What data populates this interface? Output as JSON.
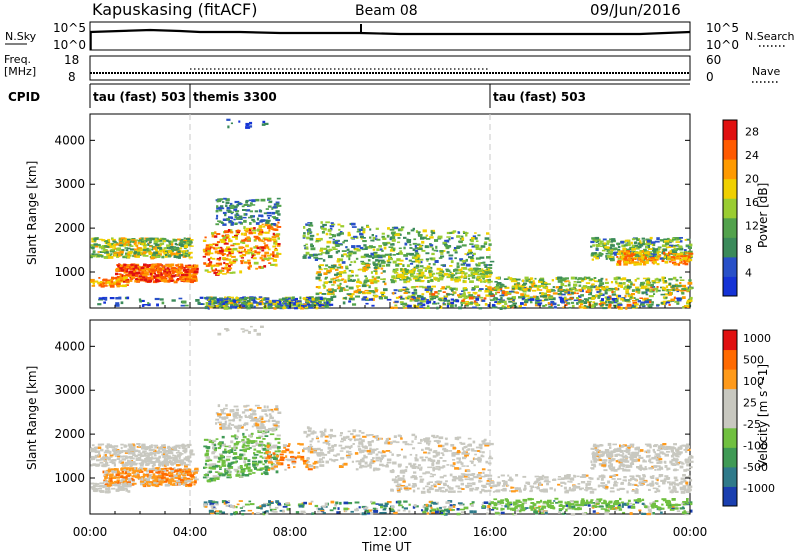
{
  "header": {
    "title": "Kapuskasing (fitACF)",
    "beam": "Beam 08",
    "date": "09/Jun/2016"
  },
  "noise_panel": {
    "left_label": "N.Sky",
    "left_ticks": [
      "10^5",
      "10^0"
    ],
    "right_ticks": [
      "10^5",
      "10^0"
    ],
    "right_label": "N.Search"
  },
  "freq_panel": {
    "left_label_1": "Freq.",
    "left_label_2": "[MHz]",
    "left_ticks": [
      "18",
      "8"
    ],
    "right_ticks": [
      "60",
      "0"
    ],
    "right_label": "Nave"
  },
  "cpid_panel": {
    "label": "CPID",
    "segments": [
      {
        "text": "tau (fast) 503",
        "start_h": 0,
        "end_h": 4
      },
      {
        "text": "themis 3300",
        "start_h": 4,
        "end_h": 16
      },
      {
        "text": "tau (fast) 503",
        "start_h": 16,
        "end_h": 24
      }
    ]
  },
  "chart_data": [
    {
      "type": "heatmap",
      "title": "",
      "ylabel": "Slant Range [km]",
      "xlabel": "Time UT",
      "xlim": [
        0,
        24
      ],
      "ylim": [
        180,
        4600
      ],
      "yticks": [
        1000,
        2000,
        3000,
        4000
      ],
      "xticks": [
        "00:00",
        "04:00",
        "08:00",
        "12:00",
        "16:00",
        "20:00",
        "00:00"
      ],
      "colorbar": {
        "label": "Power [dB]",
        "ticks": [
          "4",
          "8",
          "12",
          "16",
          "20",
          "24",
          "28"
        ],
        "range": [
          0,
          30
        ],
        "colors": [
          "#1533d6",
          "#2850c8",
          "#3b8a5a",
          "#52a24c",
          "#9acd32",
          "#f0d000",
          "#ff9a00",
          "#ff5a00",
          "#e01010"
        ]
      }
    },
    {
      "type": "heatmap",
      "title": "",
      "ylabel": "Slant Range [km]",
      "xlabel": "Time UT",
      "xlim": [
        0,
        24
      ],
      "ylim": [
        180,
        4600
      ],
      "yticks": [
        1000,
        2000,
        3000,
        4000
      ],
      "xticks": [
        "00:00",
        "04:00",
        "08:00",
        "12:00",
        "16:00",
        "20:00",
        "00:00"
      ],
      "colorbar": {
        "label": "Velocity [m s^-1]",
        "ticks": [
          "1000",
          "500",
          "100",
          "25",
          "-25",
          "-100",
          "-500",
          "-1000"
        ],
        "colors": [
          "#1a3fb0",
          "#2f7a8a",
          "#3f9a55",
          "#70c040",
          "#c8c8c0",
          "#c8c8c0",
          "#ff9a1a",
          "#ff6a00",
          "#e01010"
        ]
      }
    }
  ]
}
